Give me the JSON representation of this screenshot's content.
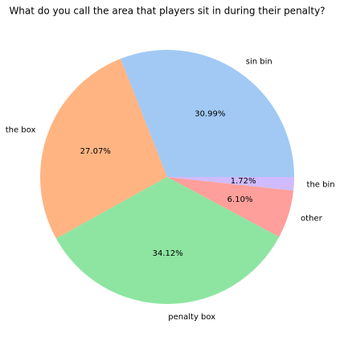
{
  "chart_data": {
    "type": "pie",
    "title": "What do you call the area that players sit in during their penalty?",
    "categories": [
      "sin bin",
      "the box",
      "penalty box",
      "other",
      "the bin"
    ],
    "values": [
      30.99,
      27.07,
      34.12,
      6.1,
      1.72
    ],
    "value_labels": [
      "30.99%",
      "27.07%",
      "34.12%",
      "6.10%",
      "1.72%"
    ],
    "colors": [
      "#a1c9f4",
      "#ffb482",
      "#8de5a1",
      "#ff9f9b",
      "#d0bbff"
    ]
  }
}
